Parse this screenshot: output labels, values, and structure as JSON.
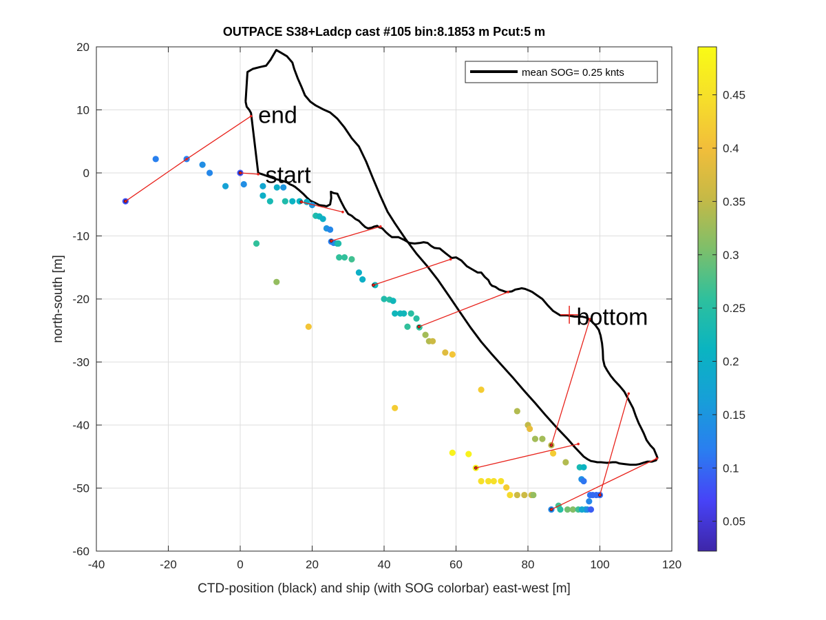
{
  "chart_data": {
    "type": "scatter",
    "title": "OUTPACE S38+Ladcp cast #105 bin:8.1853 m  Pcut:5 m",
    "xlabel": "CTD-position (black) and ship (with SOG colorbar) east-west [m]",
    "ylabel": "north-south [m]",
    "xlim": [
      -40,
      120
    ],
    "ylim": [
      -60,
      20
    ],
    "xticks": [
      -40,
      -20,
      0,
      20,
      40,
      60,
      80,
      100,
      120
    ],
    "yticks": [
      -60,
      -50,
      -40,
      -30,
      -20,
      -10,
      0,
      10,
      20
    ],
    "grid": true,
    "legend": {
      "label": "mean SOG=  0.25 knts",
      "position": "top-right"
    },
    "colorbar": {
      "range": [
        0.022,
        0.495
      ],
      "ticks": [
        0.05,
        0.1,
        0.15,
        0.2,
        0.25,
        0.3,
        0.35,
        0.4,
        0.45
      ],
      "colormap": [
        "#3e26a8",
        "#4743f7",
        "#2a7ef0",
        "#179fd8",
        "#0ab4c1",
        "#2ec09d",
        "#7ebf6a",
        "#c6b946",
        "#f2be3a",
        "#f6df2a",
        "#f9fb15"
      ]
    },
    "annotations": [
      {
        "text": "end",
        "x": 5,
        "y": 9
      },
      {
        "text": "start",
        "x": 7,
        "y": -0.5
      },
      {
        "text": "bottom",
        "x": 93.5,
        "y": -23
      }
    ],
    "bottom_marker": {
      "x": 91.5,
      "y": -22.5
    },
    "ctd_track": [
      [
        1.5,
        11.3
      ],
      [
        1.8,
        10.5
      ],
      [
        2.5,
        10
      ],
      [
        3,
        9.5
      ],
      [
        5,
        0
      ],
      [
        6,
        -0.2
      ],
      [
        8,
        -0.6
      ],
      [
        10,
        -1
      ],
      [
        12,
        -1.3
      ],
      [
        13,
        -1.5
      ],
      [
        13.8,
        -1.8
      ],
      [
        14.6,
        -2
      ],
      [
        15.2,
        -2.2
      ],
      [
        16.5,
        -2.8
      ],
      [
        17.5,
        -3.3
      ],
      [
        18.5,
        -3.9
      ],
      [
        19.5,
        -4.4
      ],
      [
        21,
        -4.8
      ],
      [
        22,
        -5.1
      ],
      [
        23.3,
        -5.2
      ],
      [
        24,
        -5.3
      ],
      [
        25,
        -5
      ],
      [
        25.3,
        -4
      ],
      [
        25.2,
        -3
      ],
      [
        26,
        -3.2
      ],
      [
        27,
        -3.3
      ],
      [
        28,
        -4.5
      ],
      [
        29,
        -5.6
      ],
      [
        30,
        -6.5
      ],
      [
        31,
        -6.8
      ],
      [
        32,
        -7.3
      ],
      [
        33,
        -7.6
      ],
      [
        34,
        -8.2
      ],
      [
        34.8,
        -8.6
      ],
      [
        35.5,
        -8.8
      ],
      [
        36.5,
        -8.7
      ],
      [
        37.3,
        -8.5
      ],
      [
        38.1,
        -8.4
      ],
      [
        38.5,
        -8.6
      ],
      [
        39.5,
        -8.8
      ],
      [
        40.5,
        -9.4
      ],
      [
        41.5,
        -9.9
      ],
      [
        42.2,
        -10.2
      ],
      [
        44,
        -10.2
      ],
      [
        45.5,
        -10.6
      ],
      [
        47,
        -11.1
      ],
      [
        48.5,
        -11.2
      ],
      [
        50,
        -11.1
      ],
      [
        51,
        -11
      ],
      [
        52.1,
        -11.1
      ],
      [
        53.1,
        -11.6
      ],
      [
        54,
        -11.9
      ],
      [
        55.5,
        -12
      ],
      [
        57,
        -12.7
      ],
      [
        58.8,
        -13.5
      ],
      [
        60,
        -13.4
      ],
      [
        61.5,
        -13.9
      ],
      [
        63,
        -14.8
      ],
      [
        64.5,
        -15.3
      ],
      [
        66,
        -15.8
      ],
      [
        67,
        -15.8
      ],
      [
        68,
        -16.5
      ],
      [
        69,
        -17
      ],
      [
        69.5,
        -17.6
      ],
      [
        70,
        -17.9
      ],
      [
        71,
        -18.1
      ],
      [
        72,
        -18.5
      ],
      [
        73,
        -18.7
      ],
      [
        74,
        -18.9
      ],
      [
        75.5,
        -18.8
      ],
      [
        76.5,
        -18.5
      ],
      [
        77.5,
        -18.4
      ],
      [
        78.2,
        -18.3
      ],
      [
        79.2,
        -18.4
      ],
      [
        80.5,
        -18.7
      ],
      [
        81.2,
        -18.9
      ],
      [
        82,
        -19.2
      ],
      [
        84,
        -20
      ],
      [
        85.5,
        -21
      ],
      [
        87,
        -21.9
      ],
      [
        89,
        -22.6
      ],
      [
        91,
        -22.6
      ],
      [
        93,
        -22.8
      ],
      [
        95,
        -22.8
      ],
      [
        96.5,
        -23
      ],
      [
        97.8,
        -23.6
      ],
      [
        98.8,
        -24.2
      ],
      [
        99.7,
        -24.9
      ],
      [
        100.2,
        -25.8
      ],
      [
        100.6,
        -27
      ],
      [
        100.8,
        -28.2
      ],
      [
        100.9,
        -29.6
      ],
      [
        101.3,
        -30.6
      ],
      [
        102,
        -31.3
      ],
      [
        103,
        -32.2
      ],
      [
        104,
        -32.9
      ],
      [
        105.5,
        -33.8
      ],
      [
        106.8,
        -34.7
      ],
      [
        108,
        -36
      ],
      [
        109.2,
        -37.3
      ],
      [
        110,
        -38.6
      ],
      [
        110.8,
        -39.7
      ],
      [
        111.5,
        -40.5
      ],
      [
        112.2,
        -41.3
      ],
      [
        113,
        -42.4
      ],
      [
        114,
        -43.2
      ],
      [
        115,
        -43.8
      ],
      [
        115.8,
        -44.9
      ],
      [
        116,
        -45.2
      ],
      [
        115.6,
        -45.6
      ],
      [
        114.5,
        -45.8
      ],
      [
        113.2,
        -45.8
      ],
      [
        112,
        -46
      ],
      [
        111,
        -46.2
      ],
      [
        110,
        -46.3
      ],
      [
        108.5,
        -46.3
      ],
      [
        107,
        -46.2
      ],
      [
        105.5,
        -46.1
      ],
      [
        104.5,
        -45.9
      ],
      [
        103.5,
        -45.9
      ],
      [
        102,
        -46
      ],
      [
        100.3,
        -45.9
      ],
      [
        99.3,
        -45.9
      ],
      [
        98.5,
        -45.8
      ],
      [
        97.5,
        -45.7
      ],
      [
        96.5,
        -45.4
      ],
      [
        95.5,
        -45
      ],
      [
        94.5,
        -44.4
      ],
      [
        93,
        -43.5
      ],
      [
        91,
        -42.2
      ],
      [
        88,
        -40.4
      ],
      [
        85,
        -38.5
      ],
      [
        82,
        -36.5
      ],
      [
        79,
        -34.6
      ],
      [
        76,
        -32.6
      ],
      [
        73,
        -30.7
      ],
      [
        70,
        -28.8
      ],
      [
        67,
        -26.8
      ],
      [
        64,
        -24.5
      ],
      [
        61,
        -22
      ],
      [
        58,
        -19.5
      ],
      [
        55,
        -17
      ],
      [
        52,
        -14.8
      ],
      [
        49,
        -12.8
      ],
      [
        46,
        -10.5
      ],
      [
        43,
        -8
      ],
      [
        41,
        -6.2
      ],
      [
        39,
        -3.7
      ],
      [
        37,
        -1
      ],
      [
        35,
        1.8
      ],
      [
        33,
        4.2
      ],
      [
        31,
        5.5
      ],
      [
        29,
        7.2
      ],
      [
        27,
        8.6
      ],
      [
        25,
        9.6
      ],
      [
        23,
        10.1
      ],
      [
        21,
        10.7
      ],
      [
        19.5,
        11.3
      ],
      [
        18,
        12.3
      ],
      [
        17,
        13.7
      ],
      [
        16,
        15
      ],
      [
        15,
        16.5
      ],
      [
        14.5,
        17.5
      ],
      [
        13,
        18.5
      ],
      [
        11.5,
        19
      ],
      [
        10,
        19.5
      ],
      [
        8.5,
        18
      ],
      [
        7.2,
        17
      ],
      [
        5.5,
        16.8
      ],
      [
        3.5,
        16.5
      ],
      [
        2,
        16
      ],
      [
        1.5,
        11.3
      ]
    ],
    "ship_sog": [
      [
        -31.9,
        -4.5,
        0.08
      ],
      [
        -23.5,
        2.2,
        0.12
      ],
      [
        -14.9,
        2.2,
        0.12
      ],
      [
        -10.5,
        1.3,
        0.14
      ],
      [
        -8.5,
        0,
        0.13
      ],
      [
        -4.1,
        -2.1,
        0.17
      ],
      [
        0,
        0,
        0.08
      ],
      [
        1,
        -1.8,
        0.14
      ],
      [
        4.5,
        -11.2,
        0.26
      ],
      [
        6.3,
        -2.1,
        0.18
      ],
      [
        6.3,
        -3.6,
        0.2
      ],
      [
        8.3,
        -4.5,
        0.23
      ],
      [
        10.2,
        -2.3,
        0.2
      ],
      [
        10.1,
        -17.3,
        0.32
      ],
      [
        12,
        -2.3,
        0.15
      ],
      [
        12.5,
        -4.5,
        0.24
      ],
      [
        14.5,
        -4.5,
        0.21
      ],
      [
        16.5,
        -4.5,
        0.21
      ],
      [
        18.5,
        -4.6,
        0.2
      ],
      [
        19,
        -24.4,
        0.41
      ],
      [
        20,
        -5.1,
        0.15
      ],
      [
        21,
        -6.8,
        0.24
      ],
      [
        22,
        -6.9,
        0.22
      ],
      [
        23,
        -7.3,
        0.2
      ],
      [
        24,
        -8.8,
        0.15
      ],
      [
        25,
        -9,
        0.13
      ],
      [
        25.3,
        -10.9,
        0.12
      ],
      [
        26,
        -11.1,
        0.13
      ],
      [
        27,
        -11.2,
        0.22
      ],
      [
        27.3,
        -11.2,
        0.24
      ],
      [
        27.5,
        -13.4,
        0.26
      ],
      [
        29,
        -13.4,
        0.26
      ],
      [
        31,
        -13.7,
        0.27
      ],
      [
        33,
        -15.8,
        0.2
      ],
      [
        34,
        -16.9,
        0.2
      ],
      [
        37.5,
        -17.8,
        0.22
      ],
      [
        40,
        -20,
        0.24
      ],
      [
        41.5,
        -20.1,
        0.25
      ],
      [
        42.5,
        -20.3,
        0.22
      ],
      [
        43,
        -22.3,
        0.22
      ],
      [
        44.5,
        -22.3,
        0.22
      ],
      [
        45.5,
        -22.3,
        0.22
      ],
      [
        46.5,
        -24.4,
        0.26
      ],
      [
        47.5,
        -22.3,
        0.25
      ],
      [
        49,
        -23.1,
        0.25
      ],
      [
        49.8,
        -24.5,
        0.26
      ],
      [
        51.5,
        -25.7,
        0.33
      ],
      [
        52.5,
        -26.7,
        0.34
      ],
      [
        53.5,
        -26.7,
        0.36
      ],
      [
        57,
        -28.5,
        0.38
      ],
      [
        59,
        -28.8,
        0.41
      ],
      [
        43,
        -37.3,
        0.42
      ],
      [
        59,
        -44.4,
        0.48
      ],
      [
        63.5,
        -44.6,
        0.48
      ],
      [
        65.5,
        -46.8,
        0.47
      ],
      [
        67,
        -34.4,
        0.42
      ],
      [
        67,
        -48.9,
        0.45
      ],
      [
        69,
        -48.9,
        0.45
      ],
      [
        70.5,
        -48.9,
        0.45
      ],
      [
        72.5,
        -48.9,
        0.45
      ],
      [
        74,
        -49.9,
        0.42
      ],
      [
        77,
        -37.8,
        0.34
      ],
      [
        75,
        -51.1,
        0.44
      ],
      [
        77,
        -51.1,
        0.36
      ],
      [
        79,
        -51.1,
        0.36
      ],
      [
        80,
        -40,
        0.35
      ],
      [
        80.5,
        -40.6,
        0.39
      ],
      [
        81,
        -51.1,
        0.36
      ],
      [
        81.5,
        -51.1,
        0.32
      ],
      [
        82,
        -42.2,
        0.33
      ],
      [
        84,
        -42.2,
        0.33
      ],
      [
        86.5,
        -43.2,
        0.35
      ],
      [
        87,
        -44.5,
        0.42
      ],
      [
        88.5,
        -52.8,
        0.27
      ],
      [
        89,
        -53.4,
        0.25
      ],
      [
        91,
        -53.4,
        0.3
      ],
      [
        92.5,
        -53.4,
        0.31
      ],
      [
        94,
        -53.4,
        0.27
      ],
      [
        90.5,
        -45.9,
        0.34
      ],
      [
        94.4,
        -46.7,
        0.23
      ],
      [
        95.5,
        -46.7,
        0.21
      ],
      [
        94.9,
        -48.6,
        0.14
      ],
      [
        95.5,
        -48.9,
        0.11
      ],
      [
        95,
        -53.4,
        0.18
      ],
      [
        96,
        -53.4,
        0.19
      ],
      [
        96.5,
        -53.4,
        0.14
      ],
      [
        97,
        -52.1,
        0.13
      ],
      [
        97.3,
        -51.1,
        0.11
      ],
      [
        97.5,
        -53.4,
        0.09
      ],
      [
        98,
        -51.1,
        0.1
      ],
      [
        99,
        -51.1,
        0.1
      ],
      [
        100,
        -51.1,
        0.1
      ],
      [
        86.5,
        -53.4,
        0.13
      ]
    ],
    "ctd_points": [
      [
        0,
        0
      ],
      [
        17,
        -4.6
      ],
      [
        25.3,
        -10.8
      ],
      [
        37,
        -17.8
      ],
      [
        49.7,
        -24.4
      ],
      [
        65.5,
        -46.8
      ],
      [
        86.5,
        -53.4
      ],
      [
        100,
        -51.1
      ],
      [
        86.5,
        -43.2
      ],
      [
        -31.9,
        -4.5
      ]
    ],
    "connectors": [
      [
        [
          3,
          9
        ],
        [
          -14.9,
          2.2
        ],
        [
          -31.9,
          -4.5
        ]
      ],
      [
        [
          0,
          0
        ],
        [
          5,
          -0.2
        ]
      ],
      [
        [
          17,
          -4.6
        ],
        [
          28.5,
          -6.2
        ]
      ],
      [
        [
          25.3,
          -10.8
        ],
        [
          39,
          -8.5
        ]
      ],
      [
        [
          37,
          -17.8
        ],
        [
          58.5,
          -13.7
        ]
      ],
      [
        [
          49.7,
          -24.4
        ],
        [
          74.5,
          -18.9
        ]
      ],
      [
        [
          65.5,
          -46.8
        ],
        [
          94,
          -43
        ]
      ],
      [
        [
          86.5,
          -53.4
        ],
        [
          115.8,
          -45.3
        ]
      ],
      [
        [
          100,
          -51.1
        ],
        [
          108,
          -35
        ]
      ],
      [
        [
          86.5,
          -43.2
        ],
        [
          97.2,
          -23.2
        ]
      ]
    ]
  }
}
